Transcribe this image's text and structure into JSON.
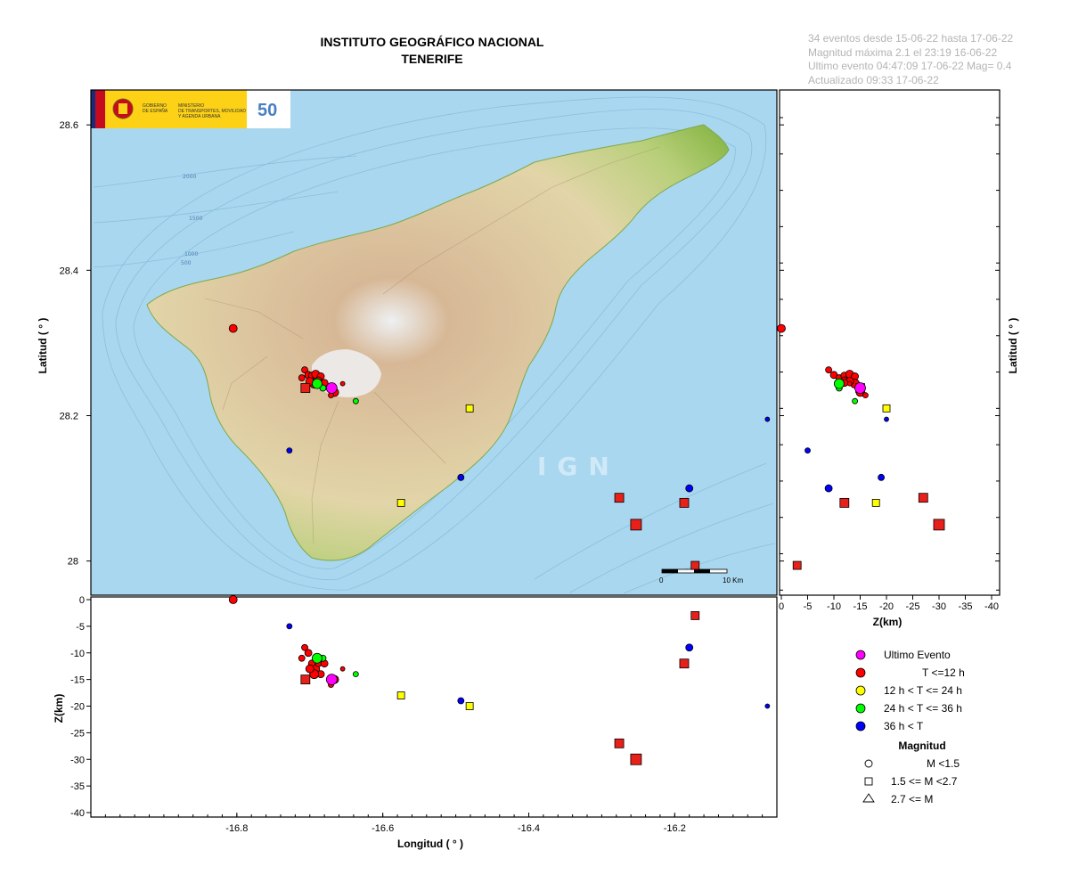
{
  "title": {
    "line1": "INSTITUTO GEOGRÁFICO NACIONAL",
    "line2": "TENERIFE"
  },
  "info": [
    "34 eventos desde 15-06-22 hasta 17-06-22",
    "Magnitud máxima 2.1 el 23:19 16-06-22",
    "Ultimo evento   04:47:09 17-06-22  Mag= 0.4",
    "Actualizado   09:33  17-06-22"
  ],
  "watermark": "IGN",
  "logo": {
    "ministry_lines": [
      "GOBIERNO",
      "DE ESPAÑA",
      "MINISTERIO",
      "DE TRANSPORTES, MOVILIDAD",
      "Y AGENDA URBANA"
    ],
    "anniversary": "50"
  },
  "scale_bar": {
    "start_label": "0",
    "end_label": "10 Km"
  },
  "contour_labels": [
    "2000",
    "1500",
    "1000",
    "500"
  ],
  "colors": {
    "ultimo": "#ff00ff",
    "t12": "#ff0000",
    "t24": "#ffff00",
    "t36": "#00ff00",
    "t36plus": "#0000ff",
    "square": "#e8201a",
    "sea": "#a9d7ef",
    "land_low": "#9cc25a",
    "land_mid": "#d9b98a",
    "land_high": "#e9ddd0"
  },
  "chart_data": {
    "type": "scatter",
    "xlabel": "Longitud ( ° )",
    "ylabel": "Latitud ( ° )",
    "zlabel_left": "Z(km)",
    "zlabel_right": "Z(km)",
    "xlim": [
      -17.0,
      -16.06
    ],
    "ylim": [
      27.953,
      28.648
    ],
    "zlim": [
      -41,
      0.5
    ],
    "x_ticks": [
      "-16.8",
      "-16.6",
      "-16.4",
      "-16.2"
    ],
    "x_tick_values": [
      -16.8,
      -16.6,
      -16.4,
      -16.2
    ],
    "y_ticks": [
      "28",
      "28.2",
      "28.4",
      "28.6"
    ],
    "y_tick_values": [
      28.0,
      28.2,
      28.4,
      28.6
    ],
    "z_ticks": [
      "0",
      "-5",
      "-10",
      "-15",
      "-20",
      "-25",
      "-30",
      "-35",
      "-40"
    ],
    "z_tick_values": [
      0,
      -5,
      -10,
      -15,
      -20,
      -25,
      -30,
      -35,
      -40
    ],
    "z_ticks_right": [
      "0",
      "-5",
      "-10",
      "-15",
      "-20",
      "-25",
      "-30",
      "-35",
      "-40"
    ],
    "legend": {
      "time": [
        {
          "label": "Ultimo Evento",
          "category": "ultimo"
        },
        {
          "label": "T <=12 h",
          "category": "t12"
        },
        {
          "label": "12 h  < T <= 24 h",
          "category": "t24"
        },
        {
          "label": "24 h  < T <= 36 h",
          "category": "t36"
        },
        {
          "label": "36 h <  T",
          "category": "t36plus"
        }
      ],
      "magnitude_title": "Magnitud",
      "magnitude": [
        {
          "label": "M <1.5",
          "shape": "circle"
        },
        {
          "label": "1.5 <= M <2.7",
          "shape": "square"
        },
        {
          "label": "2.7 <= M",
          "shape": "triangle"
        }
      ]
    },
    "events": [
      {
        "lon": -16.805,
        "lat": 28.32,
        "depth": 0,
        "category": "t12",
        "shape": "circle",
        "size": 9
      },
      {
        "lon": -16.707,
        "lat": 28.263,
        "depth": -9,
        "category": "t12",
        "shape": "circle",
        "size": 7
      },
      {
        "lon": -16.702,
        "lat": 28.256,
        "depth": -10,
        "category": "t12",
        "shape": "circle",
        "size": 8
      },
      {
        "lon": -16.711,
        "lat": 28.252,
        "depth": -11,
        "category": "t12",
        "shape": "circle",
        "size": 7
      },
      {
        "lon": -16.697,
        "lat": 28.255,
        "depth": -12,
        "category": "t12",
        "shape": "circle",
        "size": 8
      },
      {
        "lon": -16.692,
        "lat": 28.257,
        "depth": -13,
        "category": "t12",
        "shape": "circle",
        "size": 9
      },
      {
        "lon": -16.685,
        "lat": 28.254,
        "depth": -14,
        "category": "t12",
        "shape": "circle",
        "size": 8
      },
      {
        "lon": -16.688,
        "lat": 28.249,
        "depth": -12,
        "category": "t12",
        "shape": "circle",
        "size": 7
      },
      {
        "lon": -16.694,
        "lat": 28.244,
        "depth": -14,
        "category": "t12",
        "shape": "circle",
        "size": 10
      },
      {
        "lon": -16.7,
        "lat": 28.247,
        "depth": -13,
        "category": "t12",
        "shape": "circle",
        "size": 9
      },
      {
        "lon": -16.68,
        "lat": 28.245,
        "depth": -12,
        "category": "t12",
        "shape": "circle",
        "size": 8
      },
      {
        "lon": -16.682,
        "lat": 28.238,
        "depth": -11,
        "category": "t36",
        "shape": "circle",
        "size": 7
      },
      {
        "lon": -16.69,
        "lat": 28.244,
        "depth": -11,
        "category": "t36",
        "shape": "circle",
        "size": 11
      },
      {
        "lon": -16.666,
        "lat": 28.232,
        "depth": -15,
        "category": "t12",
        "shape": "circle",
        "size": 9
      },
      {
        "lon": -16.671,
        "lat": 28.228,
        "depth": -16,
        "category": "t12",
        "shape": "circle",
        "size": 6
      },
      {
        "lon": -16.655,
        "lat": 28.244,
        "depth": -13,
        "category": "t12",
        "shape": "circle",
        "size": 5
      },
      {
        "lon": -16.637,
        "lat": 28.22,
        "depth": -14,
        "category": "t36",
        "shape": "circle",
        "size": 6
      },
      {
        "lon": -16.706,
        "lat": 28.238,
        "depth": -15,
        "category": "t12",
        "shape": "square",
        "size": 10
      },
      {
        "lon": -16.67,
        "lat": 28.238,
        "depth": -15,
        "category": "ultimo",
        "shape": "circle",
        "size": 12
      },
      {
        "lon": -16.481,
        "lat": 28.21,
        "depth": -20,
        "category": "t24",
        "shape": "square",
        "size": 8
      },
      {
        "lon": -16.575,
        "lat": 28.08,
        "depth": -18,
        "category": "t24",
        "shape": "square",
        "size": 8
      },
      {
        "lon": -16.728,
        "lat": 28.152,
        "depth": -5,
        "category": "t36plus",
        "shape": "circle",
        "size": 6
      },
      {
        "lon": -16.493,
        "lat": 28.115,
        "depth": -19,
        "category": "t36plus",
        "shape": "circle",
        "size": 7
      },
      {
        "lon": -16.18,
        "lat": 28.1,
        "depth": -9,
        "category": "t36plus",
        "shape": "circle",
        "size": 8
      },
      {
        "lon": -16.073,
        "lat": 28.195,
        "depth": -20,
        "category": "t36plus",
        "shape": "circle",
        "size": 5
      },
      {
        "lon": -16.276,
        "lat": 28.087,
        "depth": -27,
        "category": "t12",
        "shape": "square",
        "size": 10
      },
      {
        "lon": -16.253,
        "lat": 28.05,
        "depth": -30,
        "category": "t12",
        "shape": "square",
        "size": 12
      },
      {
        "lon": -16.187,
        "lat": 28.08,
        "depth": -12,
        "category": "t12",
        "shape": "square",
        "size": 10
      },
      {
        "lon": -16.172,
        "lat": 27.994,
        "depth": -3,
        "category": "t12",
        "shape": "square",
        "size": 9
      }
    ]
  }
}
